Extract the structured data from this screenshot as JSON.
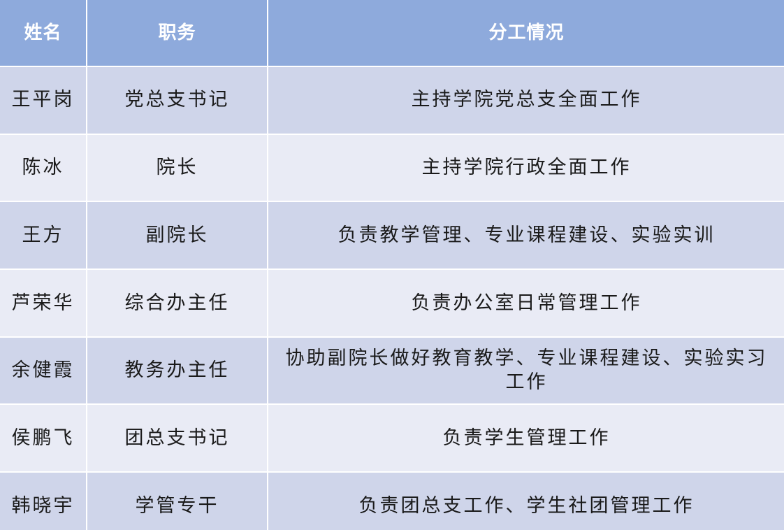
{
  "table": {
    "header": [
      "姓名",
      "职务",
      "分工情况"
    ],
    "rows": [
      [
        "王平岗",
        "党总支书记",
        "主持学院党总支全面工作"
      ],
      [
        "陈冰",
        "院长",
        "主持学院行政全面工作"
      ],
      [
        "王方",
        "副院长",
        "负责教学管理、专业课程建设、实验实训"
      ],
      [
        "芦荣华",
        "综合办主任",
        "负责办公室日常管理工作"
      ],
      [
        "余健霞",
        "教务办主任",
        "协助副院长做好教育教学、专业课程建设、实验实习工作"
      ],
      [
        "侯鹏飞",
        "团总支书记",
        "负责学生管理工作"
      ],
      [
        "韩晓宇",
        "学管专干",
        "负责团总支工作、学生社团管理工作"
      ]
    ]
  }
}
